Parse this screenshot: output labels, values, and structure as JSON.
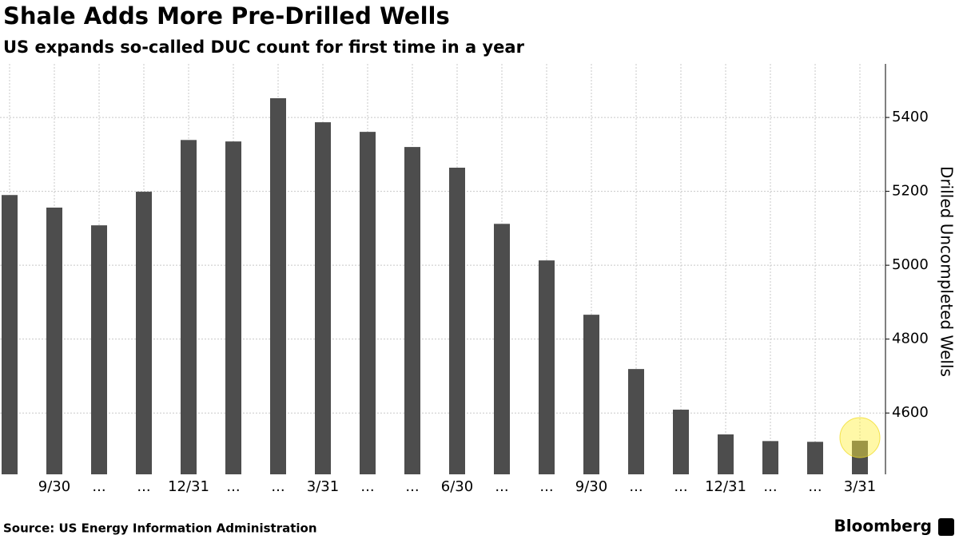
{
  "chart_data": {
    "type": "bar",
    "title": "Shale Adds More Pre-Drilled Wells",
    "subtitle": "US expands so-called DUC count for first time in a year",
    "y_axis_label": "Drilled Uncompleted Wells",
    "source": "Source: US Energy Information Administration",
    "brand": "Bloomberg",
    "categories": [
      null,
      "9/30",
      "...",
      "...",
      "12/31",
      "...",
      "...",
      "3/31",
      "...",
      "...",
      "6/30",
      "...",
      "...",
      "9/30",
      "...",
      "...",
      "12/31",
      "...",
      "...",
      "3/31"
    ],
    "values": [
      5190,
      5156,
      5108,
      5199,
      5339,
      5335,
      5452,
      5387,
      5361,
      5320,
      5264,
      5112,
      5013,
      4866,
      4719,
      4609,
      4542,
      4524,
      4522,
      4525
    ],
    "color": "#4d4d4d",
    "ylim": [
      4434,
      5545
    ],
    "yticks": [
      4600,
      4800,
      5000,
      5200,
      5400
    ],
    "grid": true
  }
}
